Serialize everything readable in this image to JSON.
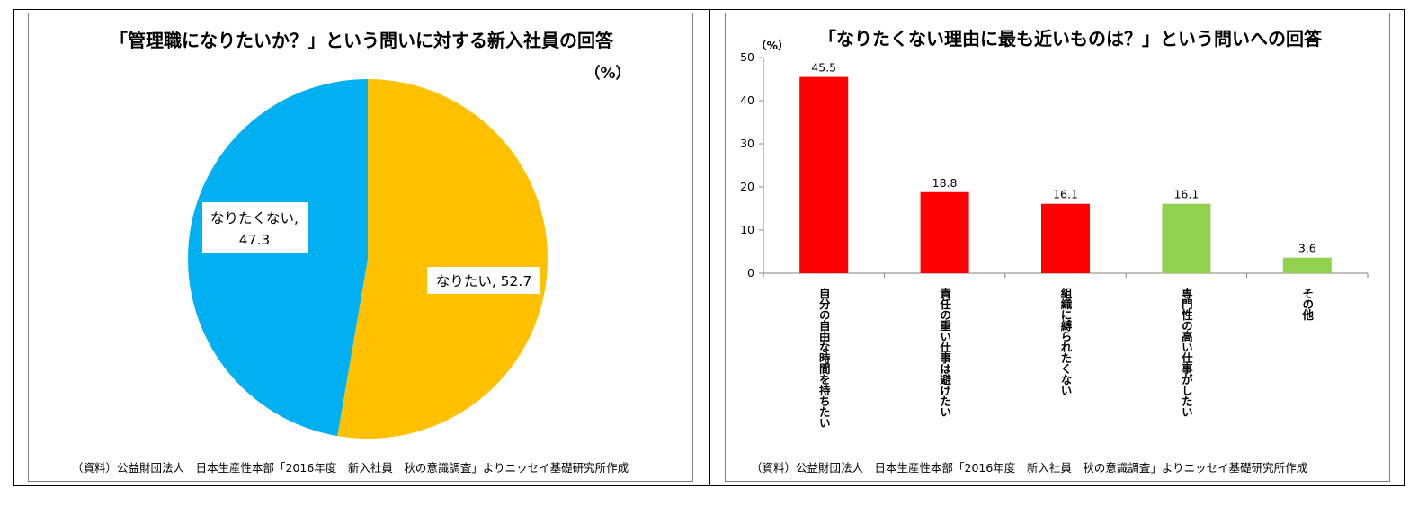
{
  "chart_data": [
    {
      "type": "pie",
      "title": "「管理職になりたいか？」という問いに対する新入社員の回答",
      "unit_label": "（%）",
      "slices": [
        {
          "label": "なりたい",
          "value": 52.7,
          "display": "なりたい, 52.7",
          "color": "#ffc000"
        },
        {
          "label": "なりたくない",
          "value": 47.3,
          "display_lines": [
            "なりたくない,",
            "47.3"
          ],
          "color": "#00b0f0"
        }
      ],
      "source": "（資料）公益財団法人　日本生産性本部「2016年度　新入社員　秋の意識調査」よりニッセイ基礎研究所作成"
    },
    {
      "type": "bar",
      "title": "「なりたくない理由に最も近いものは？」という問いへの回答",
      "ylabel": "（%）",
      "ylim": [
        0,
        50
      ],
      "yticks": [
        0,
        10,
        20,
        30,
        40,
        50
      ],
      "grid": false,
      "categories": [
        "自分の自由な時間を持ちたい",
        "責任の重い仕事は避けたい",
        "組織に縛られたくない",
        "専門性の高い仕事がしたい",
        "その他"
      ],
      "values": [
        45.5,
        18.8,
        16.1,
        16.1,
        3.6
      ],
      "value_labels": [
        "45.5",
        "18.8",
        "16.1",
        "16.1",
        "3.6"
      ],
      "colors": [
        "#ff0000",
        "#ff0000",
        "#ff0000",
        "#92d050",
        "#92d050"
      ],
      "source": "（資料）公益財団法人　日本生産性本部「2016年度　新入社員　秋の意識調査」よりニッセイ基礎研究所作成"
    }
  ]
}
